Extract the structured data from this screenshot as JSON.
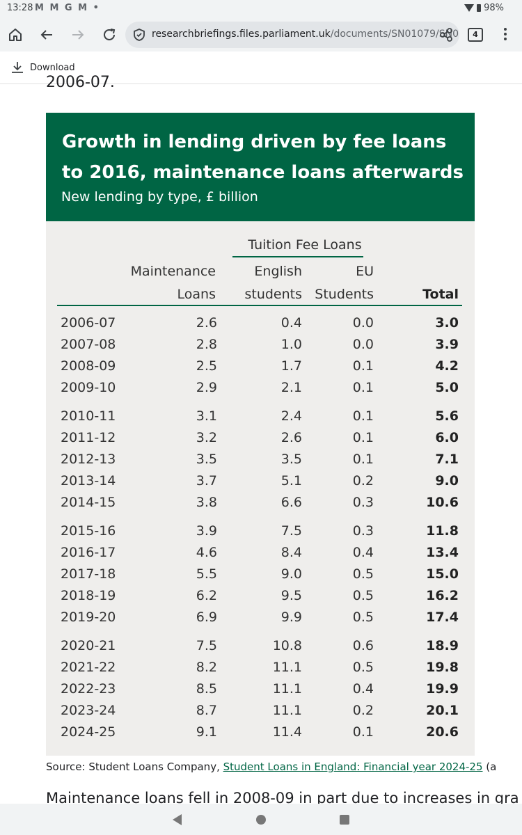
{
  "status_bar": {
    "time": "13:28",
    "notifications": "M M G M •",
    "battery": "98%"
  },
  "toolbar": {
    "url_domain": "researchbriefings.files.parliament.uk",
    "url_path": "/documents/SN01079/SN0",
    "tab_count": "4"
  },
  "download_bar": {
    "label": "Download"
  },
  "page": {
    "cutoff_text": "2006-07.",
    "source_prefix": "Source: Student Loans Company, ",
    "source_link": "Student Loans in England: Financial year 2024-25",
    "source_suffix": " (a",
    "paragraph": "Maintenance loans fell in 2008-09 in part due to increases in gra"
  },
  "figure": {
    "title": "Growth in lending driven by fee loans to 2016, maintenance loans afterwards",
    "subtitle": "New lending by type, £ billion",
    "group_header": "Tuition Fee Loans",
    "columns": {
      "maintenance_1": "Maintenance",
      "maintenance_2": "Loans",
      "english_1": "English",
      "english_2": "students",
      "eu_1": "EU",
      "eu_2": "Students",
      "total": "Total"
    },
    "rows": [
      {
        "year": "2006-07",
        "maintenance": "2.6",
        "english": "0.4",
        "eu": "0.0",
        "total": "3.0"
      },
      {
        "year": "2007-08",
        "maintenance": "2.8",
        "english": "1.0",
        "eu": "0.0",
        "total": "3.9"
      },
      {
        "year": "2008-09",
        "maintenance": "2.5",
        "english": "1.7",
        "eu": "0.1",
        "total": "4.2"
      },
      {
        "year": "2009-10",
        "maintenance": "2.9",
        "english": "2.1",
        "eu": "0.1",
        "total": "5.0"
      },
      {
        "year": "2010-11",
        "maintenance": "3.1",
        "english": "2.4",
        "eu": "0.1",
        "total": "5.6"
      },
      {
        "year": "2011-12",
        "maintenance": "3.2",
        "english": "2.6",
        "eu": "0.1",
        "total": "6.0"
      },
      {
        "year": "2012-13",
        "maintenance": "3.5",
        "english": "3.5",
        "eu": "0.1",
        "total": "7.1"
      },
      {
        "year": "2013-14",
        "maintenance": "3.7",
        "english": "5.1",
        "eu": "0.2",
        "total": "9.0"
      },
      {
        "year": "2014-15",
        "maintenance": "3.8",
        "english": "6.6",
        "eu": "0.3",
        "total": "10.6"
      },
      {
        "year": "2015-16",
        "maintenance": "3.9",
        "english": "7.5",
        "eu": "0.3",
        "total": "11.8"
      },
      {
        "year": "2016-17",
        "maintenance": "4.6",
        "english": "8.4",
        "eu": "0.4",
        "total": "13.4"
      },
      {
        "year": "2017-18",
        "maintenance": "5.5",
        "english": "9.0",
        "eu": "0.5",
        "total": "15.0"
      },
      {
        "year": "2018-19",
        "maintenance": "6.2",
        "english": "9.5",
        "eu": "0.5",
        "total": "16.2"
      },
      {
        "year": "2019-20",
        "maintenance": "6.9",
        "english": "9.9",
        "eu": "0.5",
        "total": "17.4"
      },
      {
        "year": "2020-21",
        "maintenance": "7.5",
        "english": "10.8",
        "eu": "0.6",
        "total": "18.9"
      },
      {
        "year": "2021-22",
        "maintenance": "8.2",
        "english": "11.1",
        "eu": "0.5",
        "total": "19.8"
      },
      {
        "year": "2022-23",
        "maintenance": "8.5",
        "english": "11.1",
        "eu": "0.4",
        "total": "19.9"
      },
      {
        "year": "2023-24",
        "maintenance": "8.7",
        "english": "11.1",
        "eu": "0.2",
        "total": "20.1"
      },
      {
        "year": "2024-25",
        "maintenance": "9.1",
        "english": "11.4",
        "eu": "0.1",
        "total": "20.6"
      }
    ]
  }
}
